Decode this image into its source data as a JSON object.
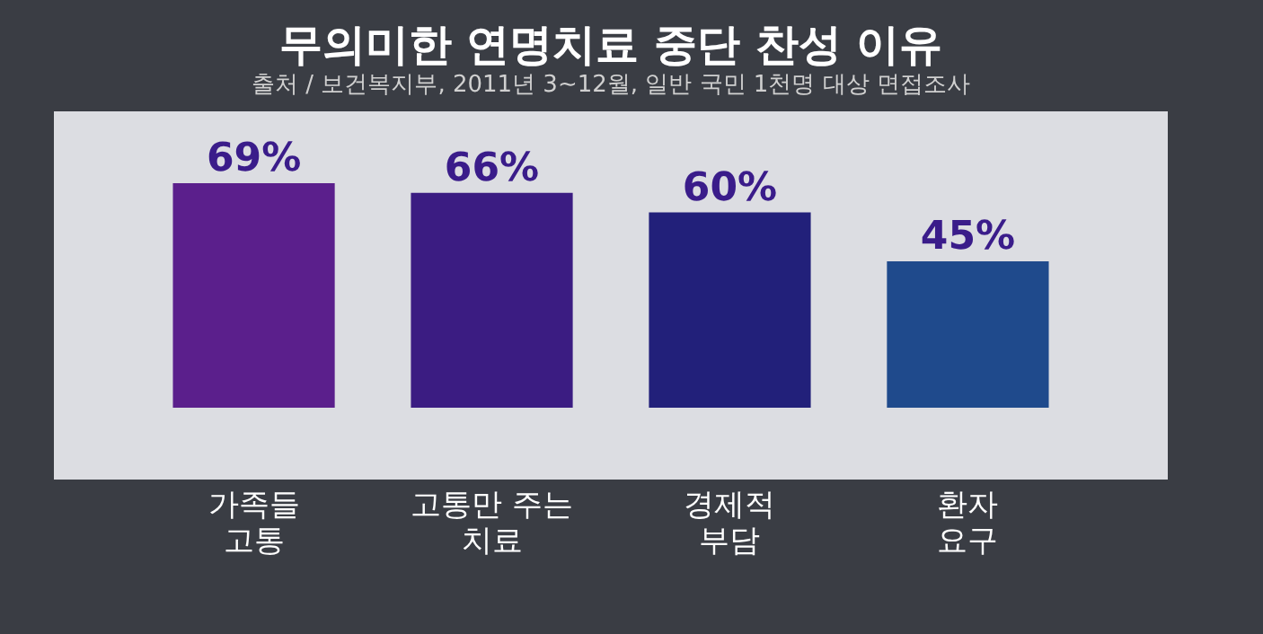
{
  "chart_data": {
    "type": "bar",
    "title": "무의미한 연명치료 중단 찬성 이유",
    "subtitle": "출처 / 보건복지부, 2011년 3~12월, 일반 국민 1천명 대상 면접조사",
    "categories": [
      "가족들\n고통",
      "고통만 주는\n치료",
      "경제적\n부담",
      "환자\n요구"
    ],
    "values": [
      69,
      66,
      60,
      45
    ],
    "colors": [
      "#5b1f8c",
      "#3b1c82",
      "#22207a",
      "#1f4a8c"
    ],
    "value_labels": [
      "69%",
      "66%",
      "60%",
      "45%"
    ]
  }
}
